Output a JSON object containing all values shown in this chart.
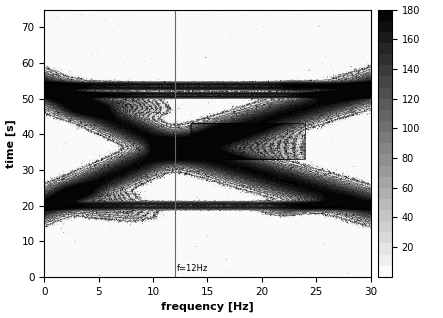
{
  "freq_min": 0,
  "freq_max": 30,
  "time_min": 0,
  "time_max": 75,
  "marker_freq": 12,
  "marker_label": "f=12Hz",
  "xlabel": "frequency [Hz]",
  "ylabel": "time [s]",
  "colorbar_min": 0,
  "colorbar_max": 180,
  "colorbar_ticks": [
    20,
    40,
    60,
    80,
    100,
    120,
    140,
    160,
    180
  ],
  "cmap": "gray_r",
  "xticks": [
    0,
    5,
    10,
    15,
    20,
    25,
    30
  ],
  "yticks": [
    0,
    10,
    20,
    30,
    40,
    50,
    60,
    70
  ],
  "n_contour_levels": 18,
  "figsize": [
    4.43,
    3.18
  ],
  "dpi": 100
}
